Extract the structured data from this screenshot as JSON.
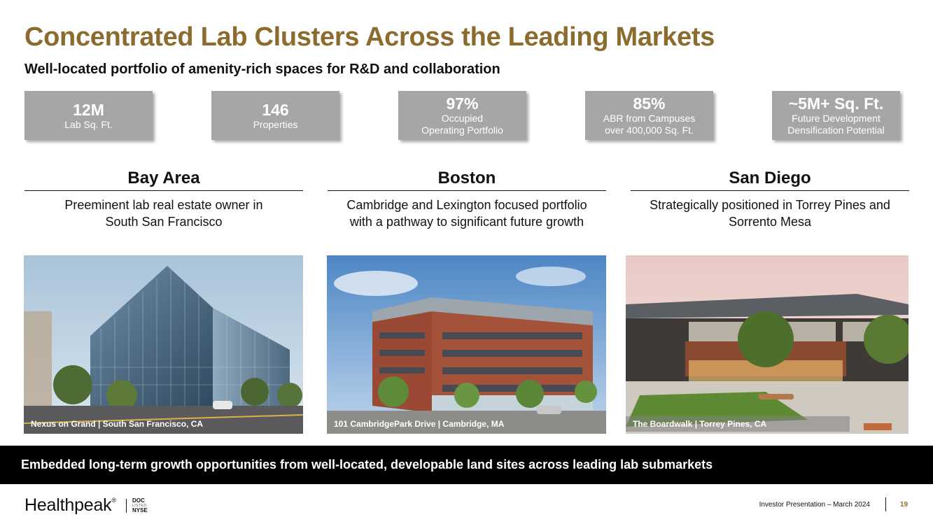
{
  "title": "Concentrated Lab Clusters Across the Leading Markets",
  "subtitle": "Well-located portfolio of amenity-rich spaces for R&D and collaboration",
  "stats": [
    {
      "value": "12M",
      "label1": "Lab Sq. Ft.",
      "label2": ""
    },
    {
      "value": "146",
      "label1": "Properties",
      "label2": ""
    },
    {
      "value": "97%",
      "label1": "Occupied",
      "label2": "Operating Portfolio"
    },
    {
      "value": "85%",
      "label1": "ABR from Campuses",
      "label2": "over 400,000 Sq. Ft."
    },
    {
      "value": "~5M+ Sq. Ft.",
      "label1": "Future Development",
      "label2": "Densification Potential"
    }
  ],
  "regions": [
    {
      "name": "Bay Area",
      "desc1": "Preeminent lab real estate owner in",
      "desc2": "South San Francisco",
      "caption": "Nexus on Grand | South San Francisco, CA"
    },
    {
      "name": "Boston",
      "desc1": "Cambridge and Lexington focused portfolio",
      "desc2": "with a pathway to significant future growth",
      "caption": "101 CambridgePark Drive | Cambridge, MA"
    },
    {
      "name": "San Diego",
      "desc1": "Strategically positioned in Torrey Pines and",
      "desc2": "Sorrento Mesa",
      "caption": "The Boardwalk | Torrey Pines, CA"
    }
  ],
  "banner": "Embedded long-term growth opportunities from well-located, developable land sites across leading lab submarkets",
  "footer": {
    "logo": "Healthpeak",
    "logo_mark": "®",
    "ticker_top": "DOC",
    "ticker_mid": "LISTED",
    "ticker_bottom": "NYSE",
    "text": "Investor Presentation – March 2024",
    "page": "19"
  },
  "colors": {
    "title": "#8c6c2e",
    "stat_box": "#a6a6a6",
    "banner": "#000000"
  }
}
